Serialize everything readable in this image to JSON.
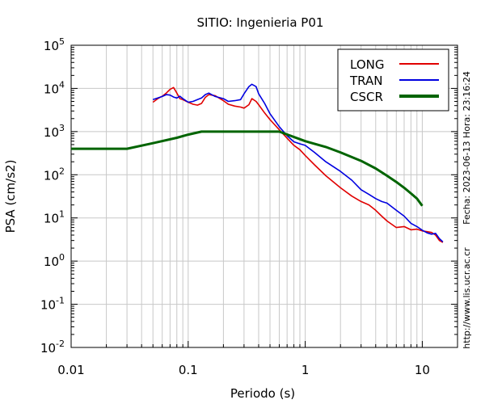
{
  "chart_data": {
    "type": "line",
    "title": "SITIO: Ingenieria P01",
    "xlabel": "Periodo (s)",
    "ylabel": "PSA (cm/s2)",
    "x_scale": "log",
    "y_scale": "log",
    "xlim": [
      0.01,
      20
    ],
    "ylim": [
      0.01,
      100000
    ],
    "grid": true,
    "legend_position": "top-right",
    "x_ticks": [
      {
        "value": 0.01,
        "label": "0.01"
      },
      {
        "value": 0.1,
        "label": "0.1"
      },
      {
        "value": 1,
        "label": "1"
      },
      {
        "value": 10,
        "label": "10"
      }
    ],
    "y_ticks": [
      {
        "value": 0.01,
        "base": "10",
        "exp": "-2"
      },
      {
        "value": 0.1,
        "base": "10",
        "exp": "-1"
      },
      {
        "value": 1,
        "base": "10",
        "exp": "0"
      },
      {
        "value": 10,
        "base": "10",
        "exp": "1"
      },
      {
        "value": 100,
        "base": "10",
        "exp": "2"
      },
      {
        "value": 1000,
        "base": "10",
        "exp": "3"
      },
      {
        "value": 10000,
        "base": "10",
        "exp": "4"
      },
      {
        "value": 100000,
        "base": "10",
        "exp": "5"
      }
    ],
    "annotations": [
      {
        "text": "Fecha: 2023-06-13 Hora: 23:16:24"
      },
      {
        "text": "http://www.lis.ucr.ac.cr"
      }
    ],
    "series": [
      {
        "name": "LONG",
        "color": "#e00000",
        "points": [
          [
            0.05,
            4800
          ],
          [
            0.055,
            5800
          ],
          [
            0.06,
            6600
          ],
          [
            0.065,
            7800
          ],
          [
            0.07,
            9500
          ],
          [
            0.075,
            10500
          ],
          [
            0.08,
            7800
          ],
          [
            0.085,
            5800
          ],
          [
            0.09,
            5500
          ],
          [
            0.1,
            4800
          ],
          [
            0.11,
            4300
          ],
          [
            0.12,
            4100
          ],
          [
            0.13,
            4500
          ],
          [
            0.14,
            6200
          ],
          [
            0.15,
            7200
          ],
          [
            0.17,
            6800
          ],
          [
            0.2,
            5200
          ],
          [
            0.22,
            4300
          ],
          [
            0.25,
            3900
          ],
          [
            0.28,
            3700
          ],
          [
            0.3,
            3500
          ],
          [
            0.33,
            4200
          ],
          [
            0.35,
            5800
          ],
          [
            0.38,
            5000
          ],
          [
            0.4,
            4200
          ],
          [
            0.45,
            2700
          ],
          [
            0.5,
            1900
          ],
          [
            0.6,
            1100
          ],
          [
            0.7,
            700
          ],
          [
            0.8,
            480
          ],
          [
            0.9,
            380
          ],
          [
            1.0,
            280
          ],
          [
            1.2,
            170
          ],
          [
            1.5,
            95
          ],
          [
            2.0,
            50
          ],
          [
            2.5,
            32
          ],
          [
            3.0,
            24
          ],
          [
            3.5,
            20
          ],
          [
            4.0,
            15
          ],
          [
            4.5,
            11
          ],
          [
            5.0,
            8.5
          ],
          [
            6.0,
            6
          ],
          [
            7.0,
            6.3
          ],
          [
            8.0,
            5.3
          ],
          [
            9.0,
            5.5
          ],
          [
            10.0,
            5.0
          ],
          [
            11.0,
            4.8
          ],
          [
            12.0,
            4.6
          ],
          [
            13.0,
            4.0
          ],
          [
            14.0,
            3.0
          ],
          [
            15.0,
            2.7
          ]
        ]
      },
      {
        "name": "TRAN",
        "color": "#0000e0",
        "points": [
          [
            0.05,
            5500
          ],
          [
            0.055,
            6000
          ],
          [
            0.06,
            6500
          ],
          [
            0.065,
            7200
          ],
          [
            0.07,
            7000
          ],
          [
            0.075,
            6300
          ],
          [
            0.08,
            6000
          ],
          [
            0.085,
            6600
          ],
          [
            0.09,
            5800
          ],
          [
            0.1,
            4800
          ],
          [
            0.11,
            5000
          ],
          [
            0.12,
            5500
          ],
          [
            0.13,
            6000
          ],
          [
            0.14,
            7200
          ],
          [
            0.15,
            7800
          ],
          [
            0.17,
            6500
          ],
          [
            0.2,
            5800
          ],
          [
            0.22,
            5000
          ],
          [
            0.25,
            5200
          ],
          [
            0.28,
            5500
          ],
          [
            0.3,
            7500
          ],
          [
            0.33,
            11000
          ],
          [
            0.35,
            12500
          ],
          [
            0.38,
            11000
          ],
          [
            0.4,
            7500
          ],
          [
            0.45,
            4500
          ],
          [
            0.5,
            2600
          ],
          [
            0.6,
            1300
          ],
          [
            0.7,
            800
          ],
          [
            0.8,
            580
          ],
          [
            0.9,
            520
          ],
          [
            1.0,
            480
          ],
          [
            1.2,
            330
          ],
          [
            1.5,
            200
          ],
          [
            2.0,
            120
          ],
          [
            2.5,
            75
          ],
          [
            3.0,
            45
          ],
          [
            3.5,
            35
          ],
          [
            4.0,
            28
          ],
          [
            4.5,
            24
          ],
          [
            5.0,
            22
          ],
          [
            6.0,
            15
          ],
          [
            7.0,
            11
          ],
          [
            8.0,
            7.5
          ],
          [
            9.0,
            6.3
          ],
          [
            10.0,
            5.2
          ],
          [
            11.0,
            4.5
          ],
          [
            12.0,
            4.2
          ],
          [
            13.0,
            4.4
          ],
          [
            14.0,
            3.3
          ],
          [
            15.0,
            2.8
          ]
        ]
      },
      {
        "name": "CSCR",
        "color": "#006400",
        "points": [
          [
            0.01,
            400
          ],
          [
            0.03,
            400
          ],
          [
            0.05,
            540
          ],
          [
            0.08,
            720
          ],
          [
            0.1,
            850
          ],
          [
            0.12,
            950
          ],
          [
            0.13,
            1000
          ],
          [
            0.6,
            1000
          ],
          [
            1.0,
            600
          ],
          [
            1.5,
            440
          ],
          [
            2.0,
            330
          ],
          [
            3.0,
            210
          ],
          [
            4.0,
            140
          ],
          [
            5.0,
            95
          ],
          [
            6.0,
            68
          ],
          [
            7.0,
            50
          ],
          [
            8.0,
            37
          ],
          [
            9.0,
            28
          ],
          [
            10.0,
            19
          ]
        ]
      }
    ]
  }
}
